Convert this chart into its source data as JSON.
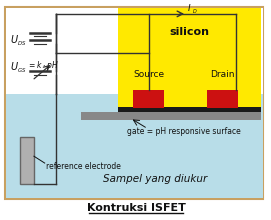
{
  "bg_color": "#ffffff",
  "border_color": "#c8a060",
  "title": "Kontruksi ISFET",
  "subtitle": "Sampel yang diukur",
  "liquid_color": "#b8dde8",
  "silicon_color": "#ffe900",
  "silicon_label": "silicon",
  "gate_label": "gate = pH responsive surface",
  "source_label": "Source",
  "drain_label": "Drain",
  "ref_label": "reference electrode",
  "black_color": "#111111",
  "red_color": "#cc1111",
  "wire_color": "#333333",
  "gate_black": "#1a1a1a",
  "gate_gray": "#888888",
  "ref_fill": "#b0b0b0",
  "ref_edge": "#666666"
}
